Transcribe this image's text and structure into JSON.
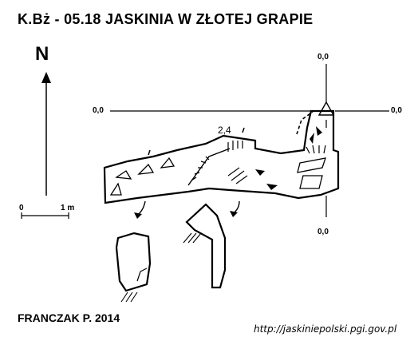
{
  "title": "K.Bż - 05.18  JASKINIA W ZŁOTEJ GRAPIE",
  "north_label": "N",
  "datum": {
    "top": "0,0",
    "left": "0,0",
    "right": "0,0",
    "bottom": "0,0"
  },
  "height_mark": "2,4",
  "scale_bar": {
    "start": "0",
    "end": "1 m"
  },
  "author": "FRANCZAK P. 2014",
  "url": "http://jaskiniepolski.pgi.gov.pl",
  "colors": {
    "line": "#000000",
    "background": "#ffffff"
  }
}
